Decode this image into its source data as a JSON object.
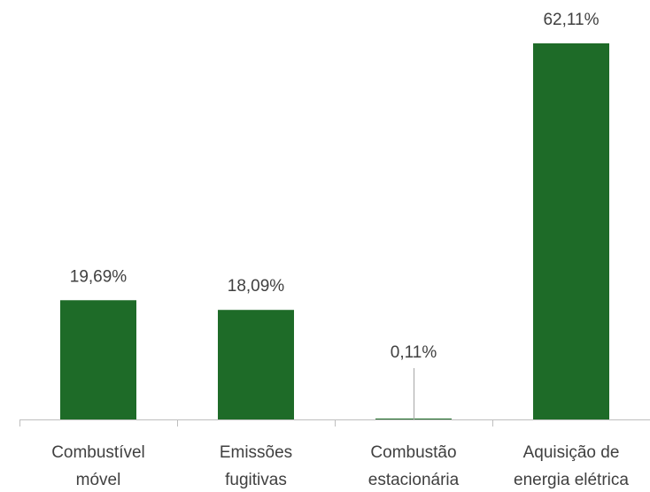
{
  "chart_data": {
    "type": "bar",
    "title": "",
    "xlabel": "",
    "ylabel": "",
    "categories": [
      [
        "Combustível",
        "móvel"
      ],
      [
        "Emissões",
        "fugitivas"
      ],
      [
        "Combustão",
        "estacionária"
      ],
      [
        "Aquisição de",
        "energia elétrica"
      ]
    ],
    "values": [
      19.69,
      18.09,
      0.11,
      62.11
    ],
    "value_labels": [
      "19,69%",
      "18,09%",
      "0,11%",
      "62,11%"
    ],
    "ylim": [
      0,
      62.11
    ],
    "grid": false,
    "legend": "none",
    "bar_color": "#1e6b28",
    "axis_color": "#bfbfbf",
    "text_color": "#404040"
  }
}
